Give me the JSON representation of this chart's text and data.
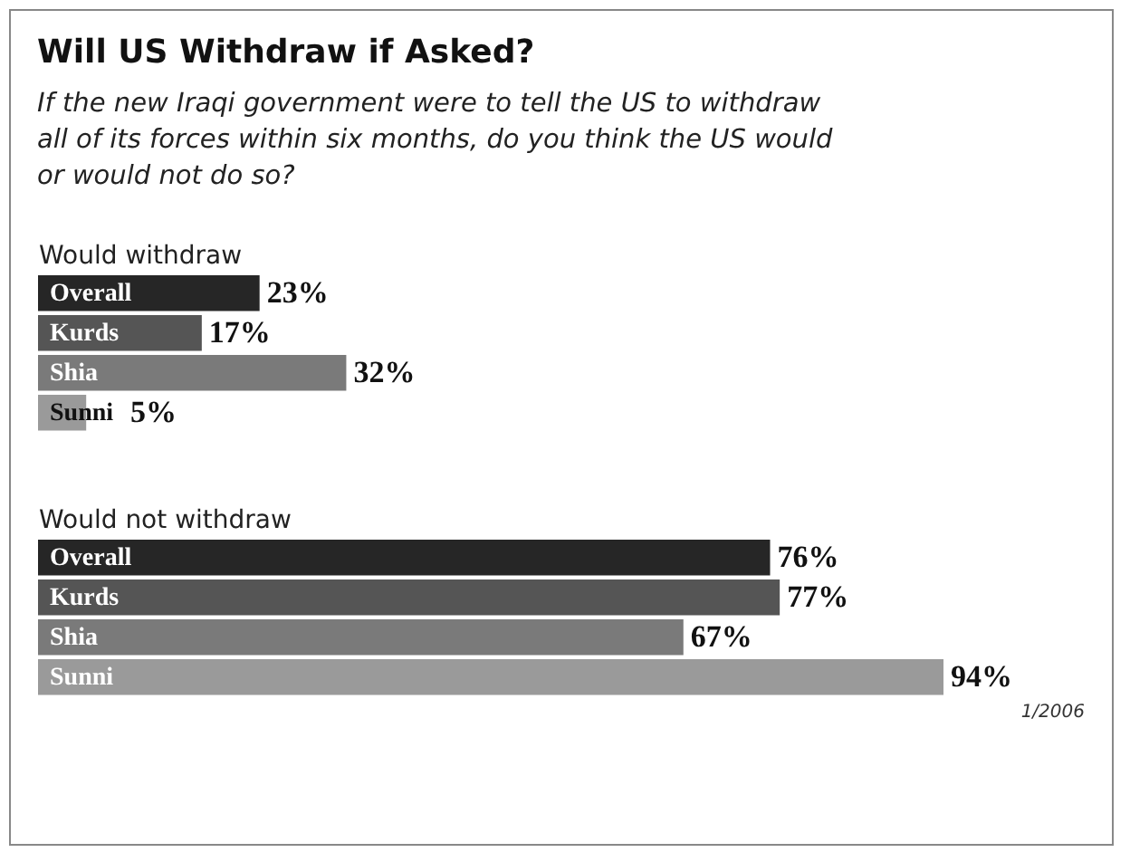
{
  "chart_data": [
    {
      "type": "bar",
      "orientation": "horizontal",
      "title": "Will US Withdraw if Asked?",
      "subtitle": "If the new Iraqi government were to tell the US to withdraw all of its forces within six months, do you think the US would or would not do so?",
      "ylabel": "Would withdraw",
      "categories": [
        "Overall",
        "Kurds",
        "Shia",
        "Sunni"
      ],
      "values": [
        23,
        17,
        32,
        5
      ],
      "value_labels": [
        "23%",
        "17%",
        "32%",
        "5%"
      ],
      "colors": [
        "#262626",
        "#555555",
        "#7a7a7a",
        "#9a9a9a"
      ]
    },
    {
      "type": "bar",
      "orientation": "horizontal",
      "ylabel": "Would not withdraw",
      "categories": [
        "Overall",
        "Kurds",
        "Shia",
        "Sunni"
      ],
      "values": [
        76,
        77,
        67,
        94
      ],
      "value_labels": [
        "76%",
        "77%",
        "67%",
        "94%"
      ],
      "colors": [
        "#262626",
        "#555555",
        "#7a7a7a",
        "#9a9a9a"
      ],
      "annotations": [
        "1/2006"
      ]
    }
  ]
}
